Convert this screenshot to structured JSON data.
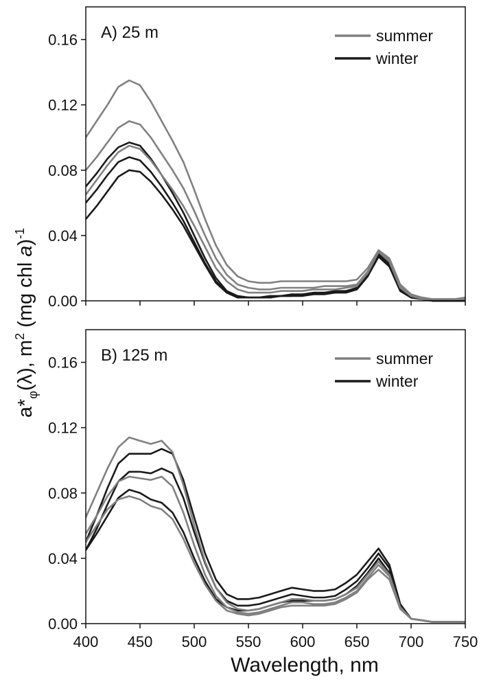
{
  "ylabel": [
    "a*",
    "φ",
    "(λ), m",
    "2",
    " (mg chl ",
    "a",
    ")",
    "-1"
  ],
  "xlabel": "Wavelength, nm",
  "chart_data": [
    {
      "type": "line",
      "title": "A) 25 m",
      "x": [
        400,
        410,
        420,
        430,
        440,
        450,
        460,
        470,
        480,
        490,
        500,
        510,
        520,
        530,
        540,
        550,
        560,
        570,
        580,
        590,
        600,
        610,
        620,
        630,
        640,
        650,
        660,
        670,
        680,
        690,
        700,
        710,
        720,
        730,
        740,
        750
      ],
      "xlim": [
        400,
        750
      ],
      "ylim": [
        0,
        0.18
      ],
      "yticks": [
        {
          "value": 0,
          "label": "0.00"
        },
        {
          "value": 0.04,
          "label": "0.04"
        },
        {
          "value": 0.08,
          "label": "0.08"
        },
        {
          "value": 0.12,
          "label": "0.12"
        },
        {
          "value": 0.16,
          "label": "0.16"
        }
      ],
      "series": [
        {
          "name": "summer",
          "color": "#808080",
          "curves": [
            [
              0.1,
              0.11,
              0.12,
              0.131,
              0.135,
              0.132,
              0.122,
              0.11,
              0.098,
              0.085,
              0.068,
              0.05,
              0.034,
              0.022,
              0.015,
              0.012,
              0.011,
              0.011,
              0.012,
              0.012,
              0.012,
              0.012,
              0.012,
              0.012,
              0.012,
              0.013,
              0.02,
              0.031,
              0.026,
              0.01,
              0.004,
              0.002,
              0.001,
              0.001,
              0.001,
              0.002
            ],
            [
              0.08,
              0.088,
              0.097,
              0.106,
              0.11,
              0.108,
              0.1,
              0.09,
              0.08,
              0.069,
              0.055,
              0.04,
              0.026,
              0.016,
              0.01,
              0.008,
              0.007,
              0.007,
              0.008,
              0.008,
              0.008,
              0.008,
              0.009,
              0.009,
              0.009,
              0.01,
              0.018,
              0.03,
              0.025,
              0.009,
              0.003,
              0.002,
              0.001,
              0.001,
              0.001,
              0.001
            ],
            [
              0.065,
              0.074,
              0.083,
              0.091,
              0.095,
              0.093,
              0.086,
              0.077,
              0.068,
              0.058,
              0.046,
              0.033,
              0.02,
              0.012,
              0.007,
              0.005,
              0.005,
              0.005,
              0.006,
              0.006,
              0.006,
              0.007,
              0.007,
              0.007,
              0.008,
              0.009,
              0.017,
              0.03,
              0.024,
              0.008,
              0.003,
              0.001,
              0.001,
              0.001,
              0.001,
              0.001
            ]
          ]
        },
        {
          "name": "winter",
          "color": "#1a1a1a",
          "curves": [
            [
              0.07,
              0.078,
              0.087,
              0.094,
              0.097,
              0.095,
              0.087,
              0.077,
              0.066,
              0.054,
              0.04,
              0.026,
              0.014,
              0.006,
              0.003,
              0.002,
              0.002,
              0.003,
              0.003,
              0.004,
              0.004,
              0.005,
              0.005,
              0.006,
              0.006,
              0.008,
              0.016,
              0.029,
              0.023,
              0.007,
              0.002,
              0.001,
              0,
              0,
              0,
              0
            ],
            [
              0.06,
              0.068,
              0.077,
              0.085,
              0.088,
              0.086,
              0.079,
              0.07,
              0.06,
              0.049,
              0.036,
              0.023,
              0.012,
              0.005,
              0.002,
              0.002,
              0.002,
              0.002,
              0.003,
              0.003,
              0.004,
              0.004,
              0.005,
              0.005,
              0.006,
              0.007,
              0.015,
              0.028,
              0.022,
              0.007,
              0.002,
              0.001,
              0,
              0,
              0,
              0
            ],
            [
              0.05,
              0.058,
              0.067,
              0.076,
              0.08,
              0.079,
              0.073,
              0.065,
              0.056,
              0.046,
              0.034,
              0.022,
              0.011,
              0.005,
              0.002,
              0.002,
              0.002,
              0.002,
              0.003,
              0.003,
              0.003,
              0.004,
              0.004,
              0.005,
              0.005,
              0.007,
              0.015,
              0.027,
              0.021,
              0.006,
              0.002,
              0.001,
              0,
              0,
              0,
              0
            ]
          ]
        }
      ]
    },
    {
      "type": "line",
      "title": "B) 125 m",
      "x": [
        400,
        410,
        420,
        430,
        440,
        450,
        460,
        470,
        480,
        490,
        500,
        510,
        520,
        530,
        540,
        550,
        560,
        570,
        580,
        590,
        600,
        610,
        620,
        630,
        640,
        650,
        660,
        670,
        680,
        690,
        700,
        710,
        720,
        730,
        740,
        750
      ],
      "xlim": [
        400,
        750
      ],
      "ylim": [
        0,
        0.18
      ],
      "xticks": [
        400,
        450,
        500,
        550,
        600,
        650,
        700,
        750
      ],
      "yticks": [
        {
          "value": 0,
          "label": "0.00"
        },
        {
          "value": 0.04,
          "label": "0.04"
        },
        {
          "value": 0.08,
          "label": "0.08"
        },
        {
          "value": 0.12,
          "label": "0.12"
        },
        {
          "value": 0.16,
          "label": "0.16"
        }
      ],
      "series": [
        {
          "name": "summer",
          "color": "#808080",
          "curves": [
            [
              0.065,
              0.08,
              0.095,
              0.108,
              0.114,
              0.112,
              0.11,
              0.112,
              0.105,
              0.085,
              0.06,
              0.038,
              0.022,
              0.013,
              0.009,
              0.008,
              0.009,
              0.011,
              0.013,
              0.015,
              0.015,
              0.014,
              0.014,
              0.015,
              0.018,
              0.022,
              0.03,
              0.038,
              0.03,
              0.01,
              0.003,
              0.002,
              0.001,
              0.001,
              0.001,
              0.001
            ],
            [
              0.055,
              0.066,
              0.078,
              0.087,
              0.09,
              0.089,
              0.088,
              0.09,
              0.084,
              0.068,
              0.048,
              0.03,
              0.017,
              0.01,
              0.007,
              0.006,
              0.007,
              0.009,
              0.011,
              0.013,
              0.013,
              0.012,
              0.012,
              0.013,
              0.016,
              0.02,
              0.028,
              0.036,
              0.029,
              0.01,
              0.003,
              0.002,
              0.001,
              0.001,
              0.001,
              0.001
            ],
            [
              0.05,
              0.06,
              0.07,
              0.076,
              0.078,
              0.076,
              0.072,
              0.07,
              0.064,
              0.052,
              0.037,
              0.024,
              0.014,
              0.008,
              0.006,
              0.005,
              0.006,
              0.008,
              0.01,
              0.011,
              0.011,
              0.011,
              0.011,
              0.012,
              0.015,
              0.019,
              0.027,
              0.033,
              0.027,
              0.009,
              0.003,
              0.002,
              0.001,
              0.001,
              0.001,
              0.001
            ]
          ]
        },
        {
          "name": "winter",
          "color": "#1a1a1a",
          "curves": [
            [
              0.05,
              0.066,
              0.083,
              0.098,
              0.104,
              0.104,
              0.104,
              0.107,
              0.104,
              0.088,
              0.065,
              0.043,
              0.027,
              0.018,
              0.015,
              0.015,
              0.016,
              0.018,
              0.02,
              0.022,
              0.021,
              0.02,
              0.02,
              0.021,
              0.025,
              0.03,
              0.038,
              0.046,
              0.036,
              0.012,
              0.003,
              0.002,
              0.001,
              0.001,
              0.001,
              0.001
            ],
            [
              0.045,
              0.058,
              0.073,
              0.087,
              0.093,
              0.093,
              0.092,
              0.095,
              0.092,
              0.077,
              0.056,
              0.037,
              0.022,
              0.014,
              0.011,
              0.011,
              0.012,
              0.014,
              0.016,
              0.018,
              0.017,
              0.016,
              0.016,
              0.017,
              0.021,
              0.026,
              0.034,
              0.043,
              0.034,
              0.011,
              0.003,
              0.002,
              0.001,
              0.001,
              0.001,
              0.001
            ],
            [
              0.045,
              0.055,
              0.066,
              0.077,
              0.082,
              0.08,
              0.076,
              0.074,
              0.068,
              0.056,
              0.04,
              0.026,
              0.015,
              0.01,
              0.008,
              0.008,
              0.009,
              0.011,
              0.013,
              0.014,
              0.014,
              0.014,
              0.014,
              0.015,
              0.018,
              0.023,
              0.031,
              0.04,
              0.031,
              0.01,
              0.003,
              0.002,
              0.001,
              0.001,
              0.001,
              0.001
            ]
          ]
        }
      ]
    }
  ]
}
